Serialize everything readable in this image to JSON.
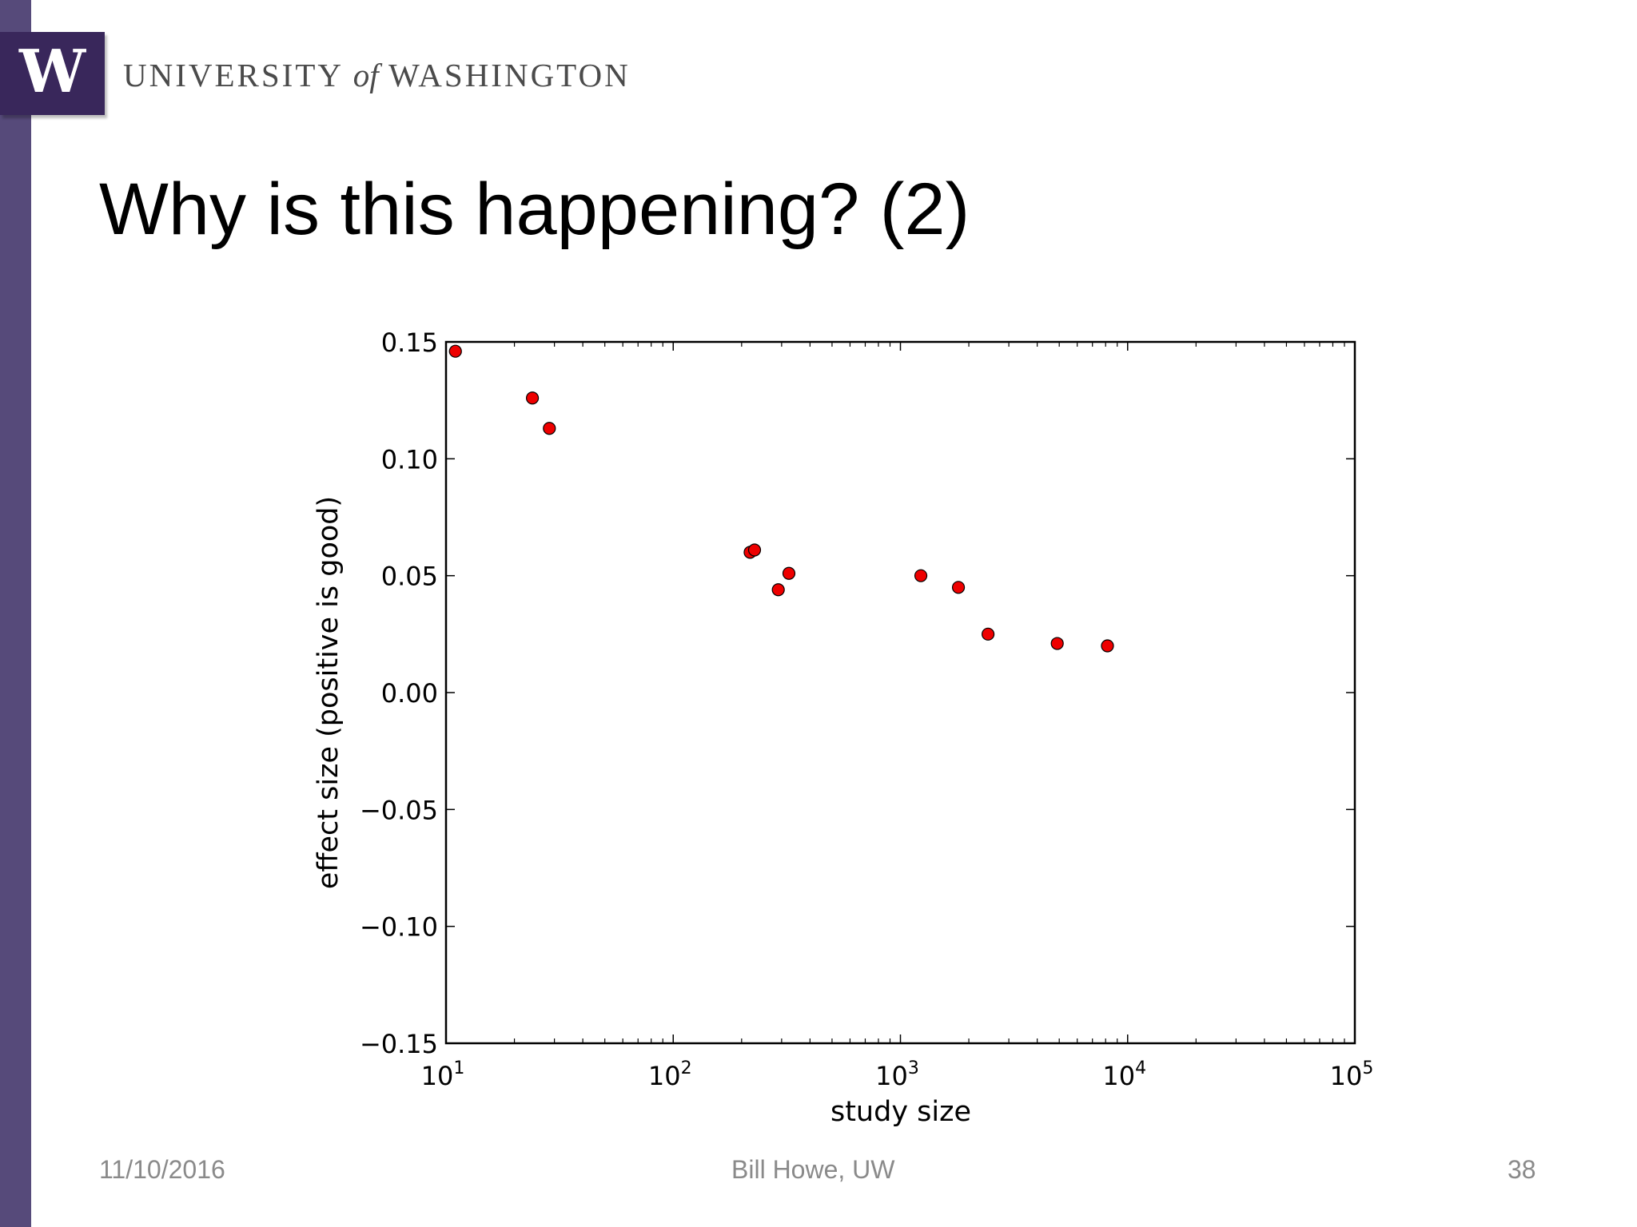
{
  "header": {
    "logo_letter": "W",
    "wordmark_left": "UNIVERSITY ",
    "wordmark_of": "of",
    "wordmark_right": " WASHINGTON"
  },
  "slide": {
    "title": "Why is this happening? (2)"
  },
  "footer": {
    "date": "11/10/2016",
    "author": "Bill Howe, UW",
    "page": "38"
  },
  "colors": {
    "marker": "#ee0000",
    "sidebar": "#564a7a",
    "logo": "#39275b"
  },
  "chart_data": {
    "type": "scatter",
    "xlabel": "study size",
    "ylabel": "effect size (positive is good)",
    "x_scale": "log",
    "xlim": [
      10,
      100000
    ],
    "ylim": [
      -0.15,
      0.15
    ],
    "x_ticks": [
      10,
      100,
      1000,
      10000,
      100000
    ],
    "x_tick_labels": [
      [
        "10",
        "1"
      ],
      [
        "10",
        "2"
      ],
      [
        "10",
        "3"
      ],
      [
        "10",
        "4"
      ],
      [
        "10",
        "5"
      ]
    ],
    "y_ticks": [
      0.15,
      0.1,
      0.05,
      0.0,
      -0.05,
      -0.1,
      -0.15
    ],
    "y_tick_labels": [
      "0.15",
      "0.10",
      "0.05",
      "0.00",
      "−0.05",
      "−0.10",
      "−0.15"
    ],
    "grid": false,
    "points": [
      {
        "x": 11,
        "y": 0.146
      },
      {
        "x": 24,
        "y": 0.126
      },
      {
        "x": 28.5,
        "y": 0.113
      },
      {
        "x": 218,
        "y": 0.06
      },
      {
        "x": 228,
        "y": 0.061
      },
      {
        "x": 290,
        "y": 0.044
      },
      {
        "x": 323,
        "y": 0.051
      },
      {
        "x": 1230,
        "y": 0.05
      },
      {
        "x": 1800,
        "y": 0.045
      },
      {
        "x": 2430,
        "y": 0.025
      },
      {
        "x": 4900,
        "y": 0.021
      },
      {
        "x": 8150,
        "y": 0.02
      }
    ]
  }
}
